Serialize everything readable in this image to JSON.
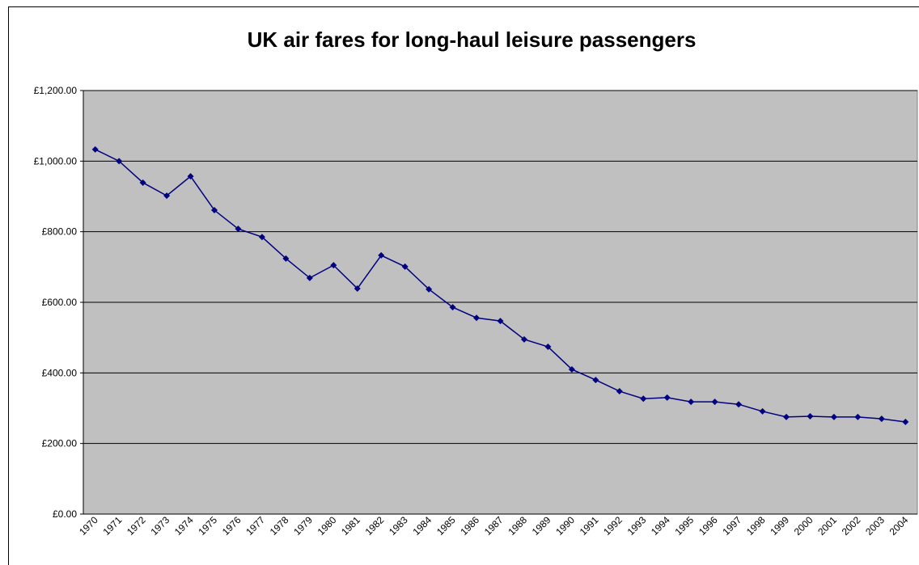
{
  "chart_data": {
    "type": "line",
    "title": "UK air fares for long-haul leisure passengers",
    "categories": [
      "1970",
      "1971",
      "1972",
      "1973",
      "1974",
      "1975",
      "1976",
      "1977",
      "1978",
      "1979",
      "1980",
      "1981",
      "1982",
      "1983",
      "1984",
      "1985",
      "1986",
      "1987",
      "1988",
      "1989",
      "1990",
      "1991",
      "1992",
      "1993",
      "1994",
      "1995",
      "1996",
      "1997",
      "1998",
      "1999",
      "2000",
      "2001",
      "2002",
      "2003",
      "2004"
    ],
    "series": [
      {
        "color": "#000080",
        "values": [
          1033,
          1000,
          939,
          902,
          957,
          861,
          808,
          785,
          724,
          669,
          705,
          639,
          733,
          701,
          637,
          586,
          556,
          547,
          495,
          474,
          410,
          380,
          348,
          327,
          330,
          318,
          318,
          311,
          291,
          275,
          277,
          275,
          275,
          270,
          261
        ]
      }
    ],
    "ylim": [
      0,
      1200
    ],
    "yticks": [
      {
        "value": 0,
        "label": "£0.00"
      },
      {
        "value": 200,
        "label": "£200.00"
      },
      {
        "value": 400,
        "label": "£400.00"
      },
      {
        "value": 600,
        "label": "£600.00"
      },
      {
        "value": 800,
        "label": "£800.00"
      },
      {
        "value": 1000,
        "label": "£1,000.00"
      },
      {
        "value": 1200,
        "label": "£1,200.00"
      }
    ],
    "grid": true
  }
}
